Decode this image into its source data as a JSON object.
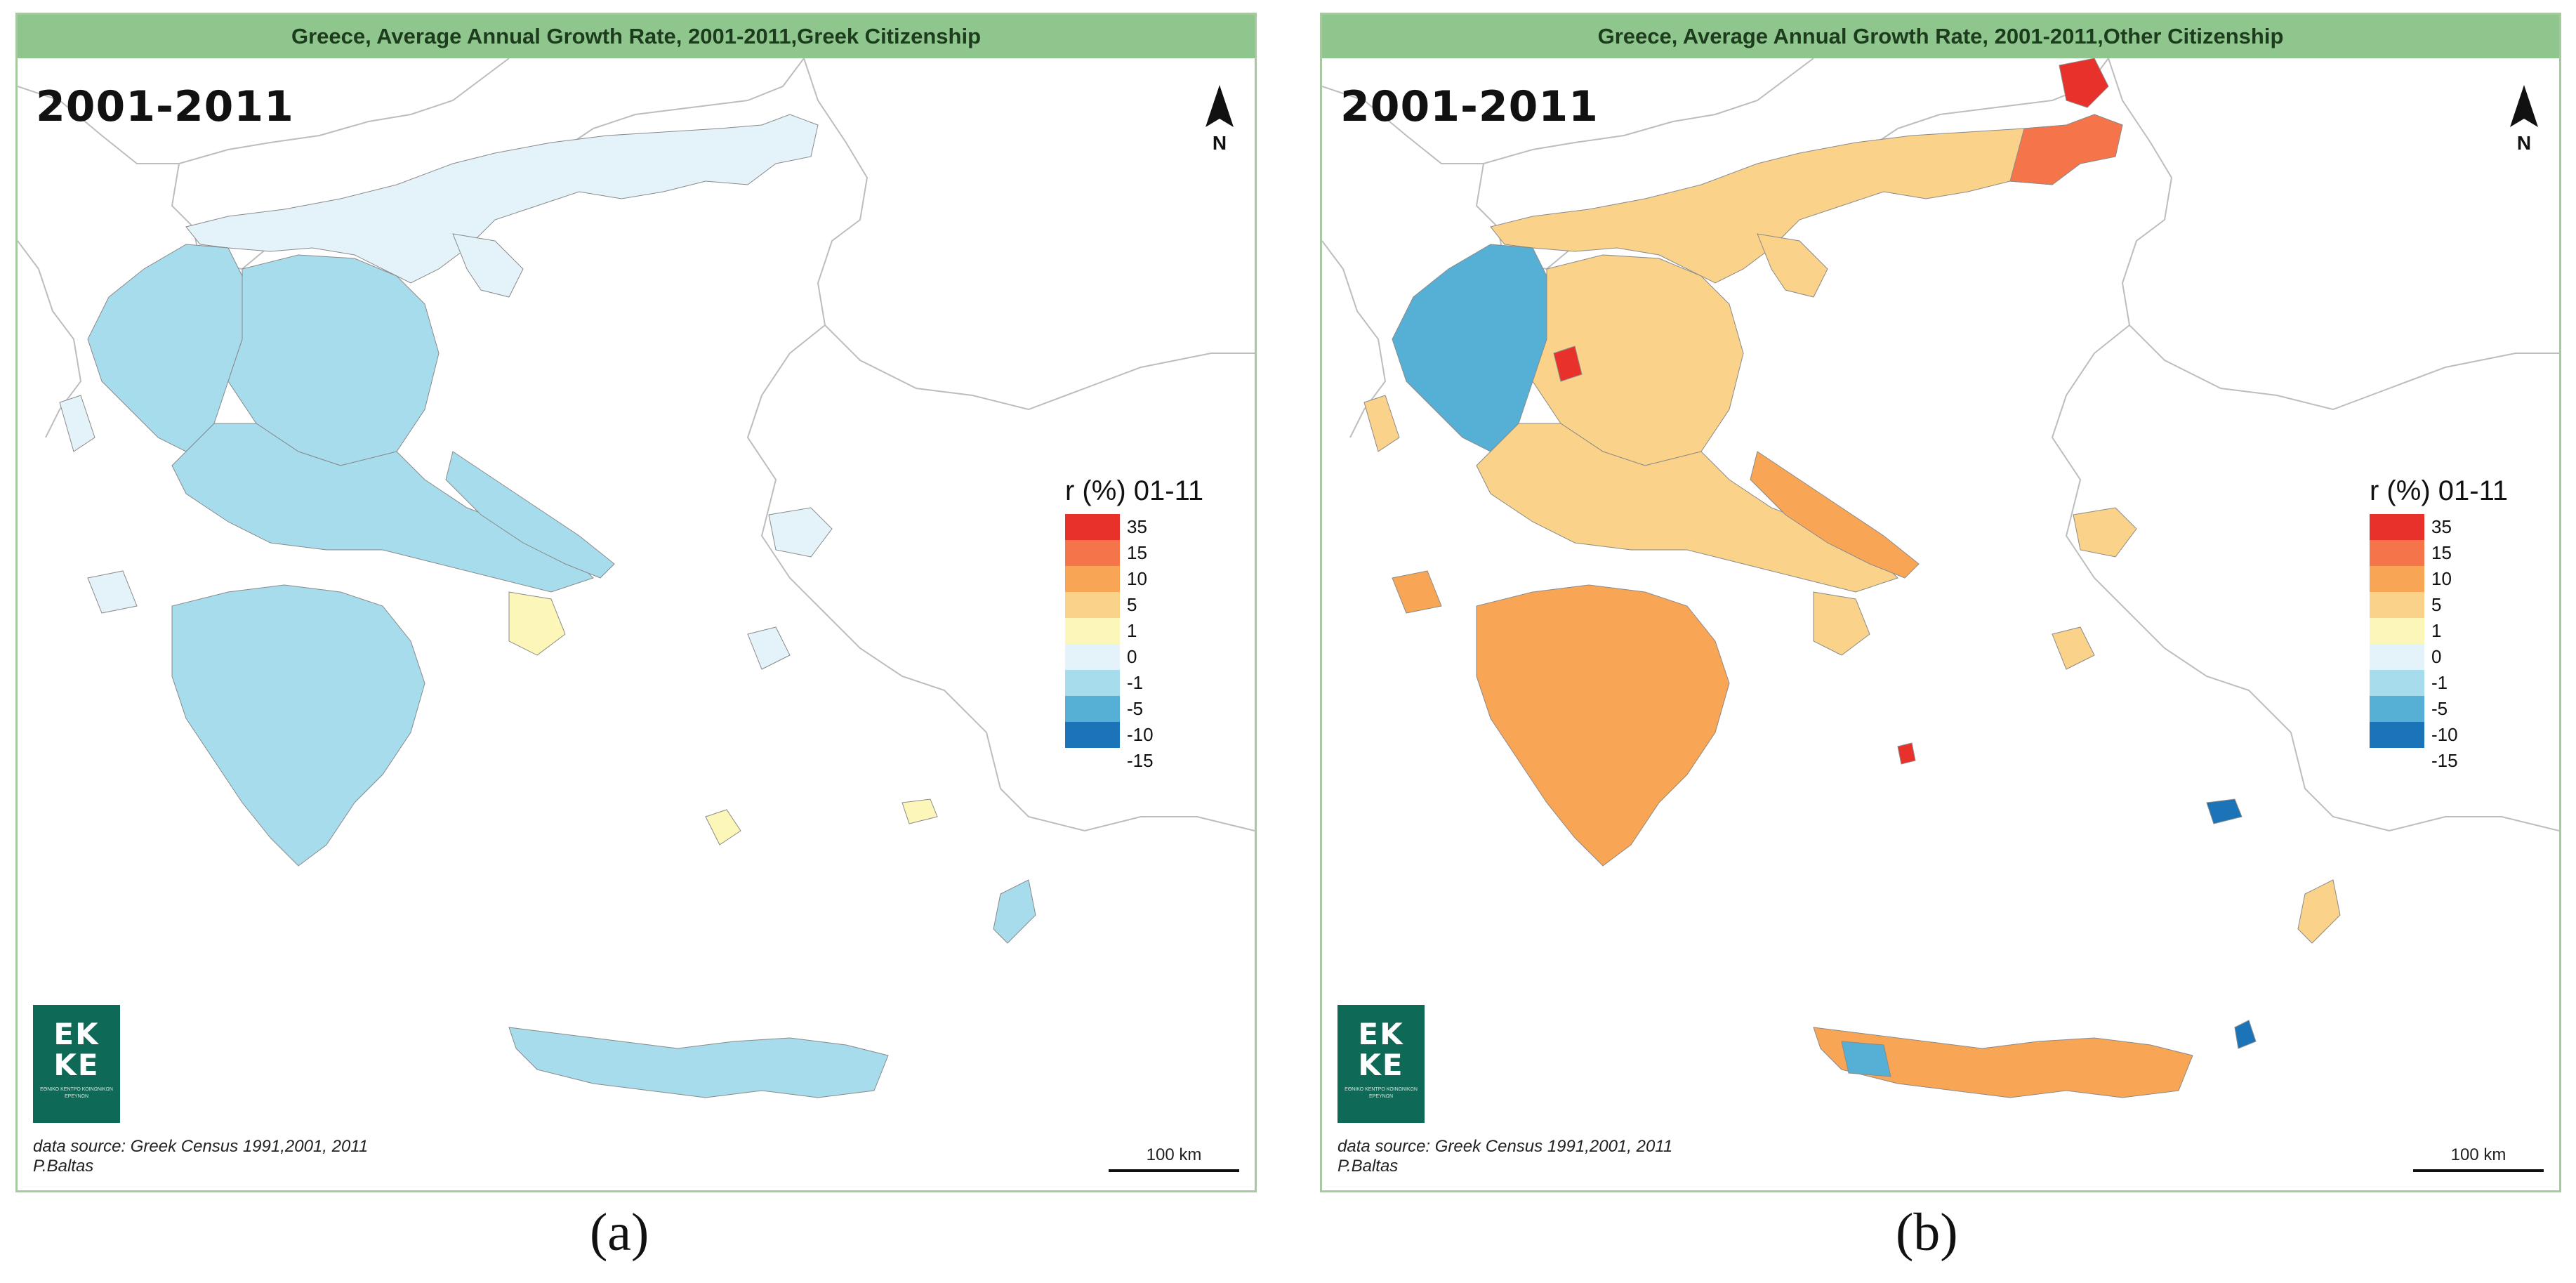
{
  "panels": [
    {
      "title": "Greece, Average Annual Growth Rate, 2001-2011,Greek Citizenship",
      "period": "2001-2011",
      "caption": "(a)",
      "dominant_class": "-1"
    },
    {
      "title": "Greece, Average Annual Growth Rate, 2001-2011,Other Citizenship",
      "period": "2001-2011",
      "caption": "(b)",
      "dominant_class": "5"
    }
  ],
  "north_label": "N",
  "legend": {
    "title": "r (%) 01-11",
    "classes": [
      {
        "label": "35",
        "color": "#e8312a"
      },
      {
        "label": "15",
        "color": "#f6744a"
      },
      {
        "label": "10",
        "color": "#f8a656"
      },
      {
        "label": "5",
        "color": "#fbd289"
      },
      {
        "label": "1",
        "color": "#fdf6b9"
      },
      {
        "label": "0",
        "color": "#e3f3f9"
      },
      {
        "label": "-1",
        "color": "#a6dcec"
      },
      {
        "label": "-5",
        "color": "#56b0d5"
      },
      {
        "label": "-10",
        "color": "#1b74b8"
      },
      {
        "label": "-15",
        "color": "#ffffff"
      }
    ]
  },
  "logo": {
    "line1": "EK",
    "line2": "KE",
    "subtitle": "ΕΘΝΙΚΟ ΚΕΝΤΡΟ ΚΟΙΝΩΝΙΚΩΝ ΕΡΕΥΝΩΝ"
  },
  "source_line1": "data source: Greek Census 1991,2001, 2011",
  "source_line2": "P.Baltas",
  "scale_label": "100 km",
  "colors": {
    "panel_border": "#a6c9a0",
    "title_bar": "#8fc68d",
    "logo": "#0e6a57",
    "neighbour_outline": "#bdbdbd"
  }
}
